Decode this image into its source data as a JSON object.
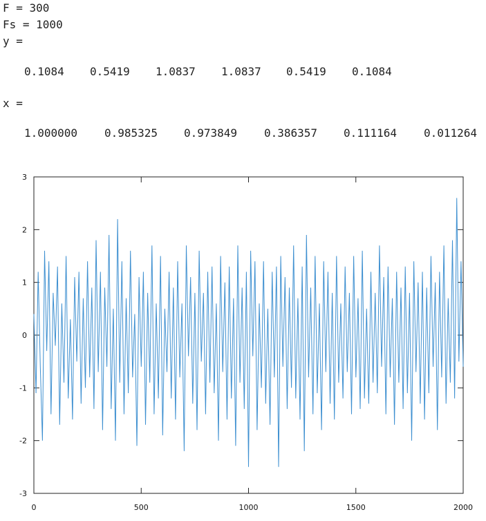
{
  "console": {
    "line_F": "F = 300",
    "line_Fs": "Fs = 1000",
    "line_y": "y =",
    "y_values": [
      "0.1084",
      "0.5419",
      "1.0837",
      "1.0837",
      "0.5419",
      "0.1084"
    ],
    "line_x": "x =",
    "x_values": [
      "1.000000",
      "0.985325",
      "0.973849",
      "0.386357",
      "0.111164",
      "0.011264"
    ]
  },
  "chart_data": {
    "type": "line",
    "title": "",
    "xlabel": "",
    "ylabel": "",
    "xlim": [
      0,
      2000
    ],
    "ylim": [
      -3,
      3
    ],
    "x_ticks": [
      "0",
      "500",
      "1000",
      "1500",
      "2000"
    ],
    "y_ticks": [
      "3",
      "2",
      "1",
      "0",
      "-1",
      "-2",
      "-3"
    ],
    "grid": false,
    "series_color": "#3d8fd0",
    "series": [
      {
        "x": [
          0,
          10,
          20,
          30,
          40,
          50,
          60,
          70,
          80,
          90,
          100,
          110,
          120,
          130,
          140,
          150,
          160,
          170,
          180,
          190,
          200,
          210,
          220,
          230,
          240,
          250,
          260,
          270,
          280,
          290,
          300,
          310,
          320,
          330,
          340,
          350,
          360,
          370,
          380,
          390,
          400,
          410,
          420,
          430,
          440,
          450,
          460,
          470,
          480,
          490,
          500,
          510,
          520,
          530,
          540,
          550,
          560,
          570,
          580,
          590,
          600,
          610,
          620,
          630,
          640,
          650,
          660,
          670,
          680,
          690,
          700,
          710,
          720,
          730,
          740,
          750,
          760,
          770,
          780,
          790,
          800,
          810,
          820,
          830,
          840,
          850,
          860,
          870,
          880,
          890,
          900,
          910,
          920,
          930,
          940,
          950,
          960,
          970,
          980,
          990,
          1000,
          1010,
          1020,
          1030,
          1040,
          1050,
          1060,
          1070,
          1080,
          1090,
          1100,
          1110,
          1120,
          1130,
          1140,
          1150,
          1160,
          1170,
          1180,
          1190,
          1200,
          1210,
          1220,
          1230,
          1240,
          1250,
          1260,
          1270,
          1280,
          1290,
          1300,
          1310,
          1320,
          1330,
          1340,
          1350,
          1360,
          1370,
          1380,
          1390,
          1400,
          1410,
          1420,
          1430,
          1440,
          1450,
          1460,
          1470,
          1480,
          1490,
          1500,
          1510,
          1520,
          1530,
          1540,
          1550,
          1560,
          1570,
          1580,
          1590,
          1600,
          1610,
          1620,
          1630,
          1640,
          1650,
          1660,
          1670,
          1680,
          1690,
          1700,
          1710,
          1720,
          1730,
          1740,
          1750,
          1760,
          1770,
          1780,
          1790,
          1800,
          1810,
          1820,
          1830,
          1840,
          1850,
          1860,
          1870,
          1880,
          1890,
          1900,
          1910,
          1920,
          1930,
          1940,
          1950,
          1960,
          1970,
          1980,
          1990,
          2000
        ],
        "y": [
          0.4,
          -1.1,
          1.2,
          -0.6,
          -2.0,
          1.6,
          -0.3,
          1.4,
          -1.5,
          0.8,
          -0.2,
          1.3,
          -1.7,
          0.6,
          -0.9,
          1.5,
          -1.2,
          0.3,
          -1.6,
          1.1,
          -0.5,
          1.2,
          -1.3,
          0.7,
          -1.0,
          1.4,
          -0.8,
          0.9,
          -1.4,
          1.8,
          -0.7,
          1.2,
          -1.8,
          0.9,
          -0.6,
          1.9,
          -1.4,
          0.5,
          -2.0,
          2.2,
          -0.9,
          1.4,
          -1.5,
          0.7,
          -1.1,
          1.6,
          -0.8,
          0.4,
          -2.1,
          1.1,
          -0.6,
          1.2,
          -1.7,
          0.8,
          -0.9,
          1.7,
          -1.5,
          0.6,
          -1.2,
          1.5,
          -1.9,
          0.5,
          -0.7,
          1.2,
          -1.2,
          0.9,
          -1.6,
          1.4,
          -0.8,
          0.6,
          -2.2,
          1.7,
          -0.4,
          1.1,
          -1.3,
          0.8,
          -1.8,
          1.6,
          -0.5,
          0.8,
          -1.5,
          1.2,
          -0.9,
          1.3,
          -1.1,
          0.6,
          -2.0,
          1.5,
          -0.7,
          1.0,
          -1.6,
          1.3,
          -1.2,
          0.7,
          -2.1,
          1.7,
          -0.9,
          0.9,
          -1.4,
          1.2,
          -2.5,
          1.6,
          -0.4,
          1.4,
          -1.8,
          0.6,
          -1.0,
          1.4,
          -1.3,
          0.5,
          -1.7,
          1.2,
          -0.8,
          1.3,
          -2.5,
          1.5,
          -0.6,
          1.1,
          -1.4,
          0.9,
          -1.0,
          1.7,
          -1.2,
          0.7,
          -1.6,
          1.3,
          -2.2,
          1.9,
          -0.8,
          0.9,
          -1.5,
          1.5,
          -1.1,
          0.6,
          -1.8,
          1.4,
          -0.7,
          1.2,
          -1.3,
          0.8,
          -1.6,
          1.5,
          -0.9,
          0.6,
          -1.2,
          1.3,
          -0.7,
          0.8,
          -1.5,
          1.5,
          -0.8,
          0.7,
          -1.4,
          1.6,
          -1.2,
          0.5,
          -1.3,
          1.2,
          -0.9,
          0.8,
          -1.1,
          1.7,
          -0.6,
          1.1,
          -1.5,
          1.3,
          -0.8,
          0.7,
          -1.7,
          1.2,
          -0.9,
          0.9,
          -1.4,
          1.3,
          -1.1,
          0.8,
          -2.0,
          1.4,
          -0.7,
          1.0,
          -1.3,
          1.2,
          -1.6,
          0.9,
          -1.1,
          1.5,
          -0.6,
          1.0,
          -1.8,
          1.2,
          -0.8,
          1.7,
          -1.3,
          0.7,
          -0.9,
          1.8,
          -1.2,
          2.6,
          -0.5,
          1.4,
          -0.6
        ]
      }
    ]
  }
}
